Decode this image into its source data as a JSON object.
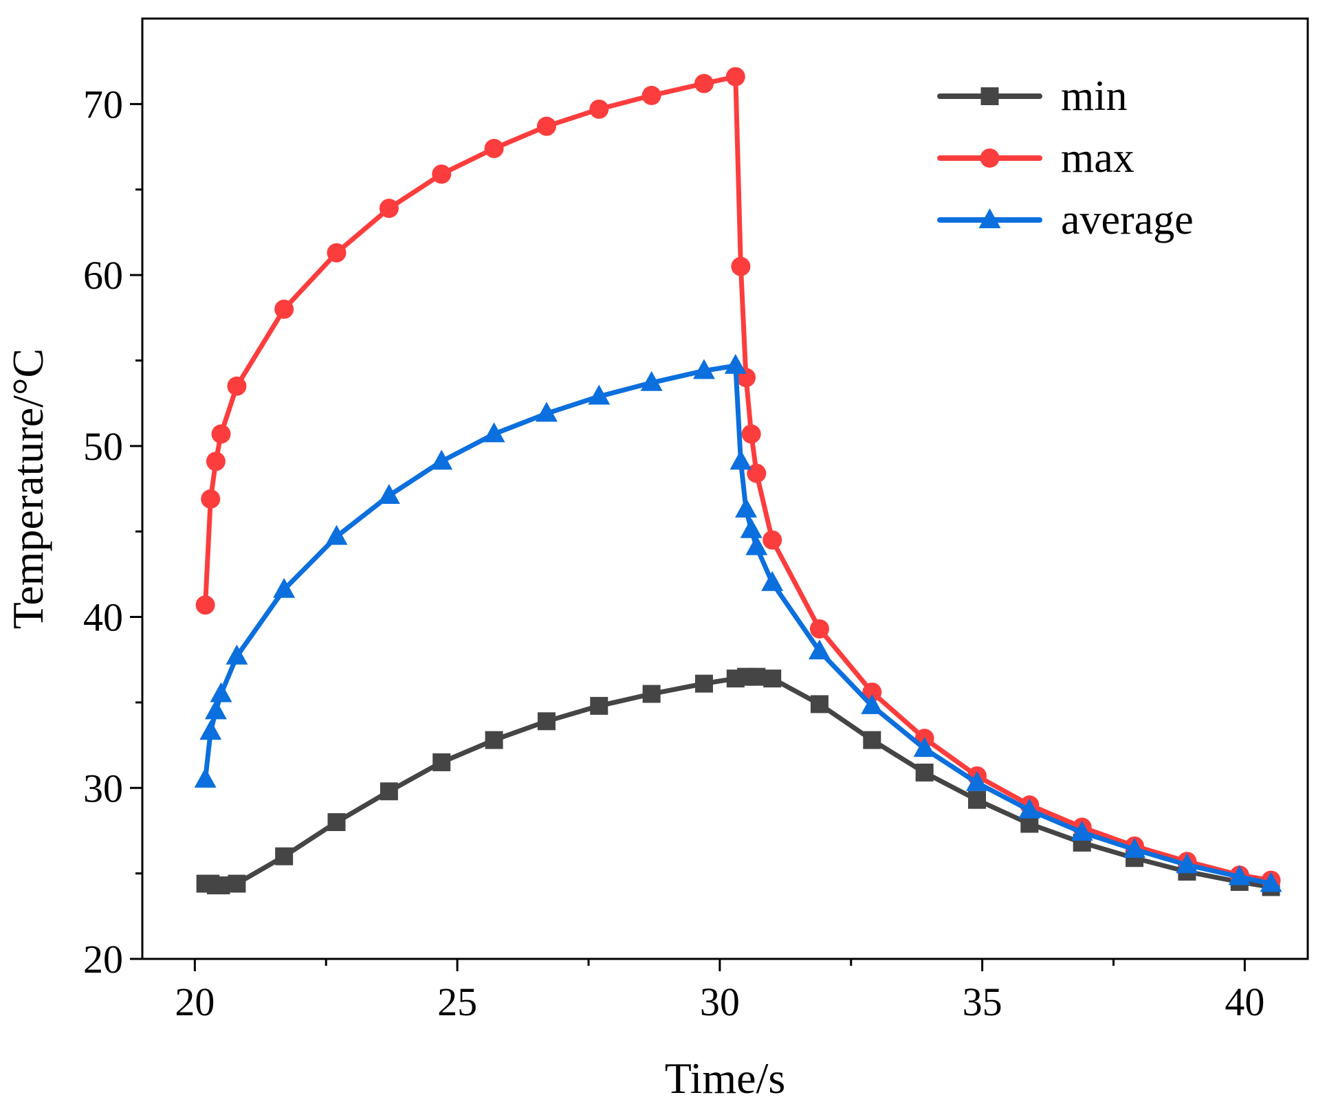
{
  "chart_data": {
    "type": "line",
    "title": "",
    "xlabel": "Time/s",
    "ylabel": "Temperature/°C",
    "xlim": [
      19,
      41.2
    ],
    "ylim": [
      20,
      75
    ],
    "xticks": [
      20,
      25,
      30,
      35,
      40
    ],
    "yticks": [
      20,
      30,
      40,
      50,
      60,
      70
    ],
    "xtick_labels": [
      "20",
      "25",
      "30",
      "35",
      "40"
    ],
    "ytick_labels": [
      "20",
      "30",
      "40",
      "50",
      "60",
      "70"
    ],
    "grid": false,
    "legend_position": "top-right",
    "series": [
      {
        "name": "min",
        "color": "#454545",
        "marker": "square",
        "x": [
          20.2,
          20.3,
          20.4,
          20.5,
          20.8,
          21.7,
          22.7,
          23.7,
          24.7,
          25.7,
          26.7,
          27.7,
          28.7,
          29.7,
          30.3,
          30.5,
          30.7,
          31.0,
          31.9,
          32.9,
          33.9,
          34.9,
          35.9,
          36.9,
          37.9,
          38.9,
          39.9,
          40.5
        ],
        "y": [
          24.4,
          24.4,
          24.3,
          24.3,
          24.4,
          26.0,
          28.0,
          29.8,
          31.5,
          32.8,
          33.9,
          34.8,
          35.5,
          36.1,
          36.4,
          36.5,
          36.5,
          36.4,
          34.9,
          32.8,
          30.9,
          29.3,
          27.9,
          26.8,
          25.9,
          25.1,
          24.5,
          24.2
        ]
      },
      {
        "name": "max",
        "color": "#fc3d3d",
        "marker": "circle",
        "x": [
          20.2,
          20.3,
          20.4,
          20.5,
          20.8,
          21.7,
          22.7,
          23.7,
          24.7,
          25.7,
          26.7,
          27.7,
          28.7,
          29.7,
          30.3,
          30.4,
          30.5,
          30.6,
          30.7,
          31.0,
          31.9,
          32.9,
          33.9,
          34.9,
          35.9,
          36.9,
          37.9,
          38.9,
          39.9,
          40.5
        ],
        "y": [
          40.7,
          46.9,
          49.1,
          50.7,
          53.5,
          58.0,
          61.3,
          63.9,
          65.9,
          67.4,
          68.7,
          69.7,
          70.5,
          71.2,
          71.6,
          60.5,
          54.0,
          50.7,
          48.4,
          44.5,
          39.3,
          35.6,
          32.9,
          30.7,
          29.0,
          27.7,
          26.6,
          25.7,
          24.9,
          24.6
        ]
      },
      {
        "name": "average",
        "color": "#0b6fde",
        "marker": "triangle",
        "x": [
          20.2,
          20.3,
          20.4,
          20.5,
          20.8,
          21.7,
          22.7,
          23.7,
          24.7,
          25.7,
          26.7,
          27.7,
          28.7,
          29.7,
          30.3,
          30.4,
          30.5,
          30.6,
          30.7,
          31.0,
          31.9,
          32.9,
          33.9,
          34.9,
          35.9,
          36.9,
          37.9,
          38.9,
          39.9,
          40.5
        ],
        "y": [
          30.5,
          33.3,
          34.5,
          35.5,
          37.7,
          41.6,
          44.7,
          47.1,
          49.1,
          50.7,
          51.9,
          52.9,
          53.7,
          54.4,
          54.7,
          49.1,
          46.3,
          45.1,
          44.1,
          42.0,
          38.0,
          34.8,
          32.3,
          30.3,
          28.7,
          27.4,
          26.4,
          25.5,
          24.8,
          24.4
        ]
      }
    ]
  }
}
